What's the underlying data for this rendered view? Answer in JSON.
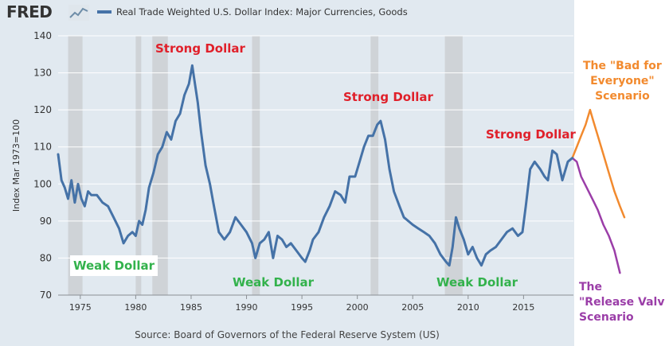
{
  "header": {
    "logo_text": "FRED",
    "legend_label": "Real Trade Weighted U.S. Dollar Index: Major Currencies, Goods",
    "legend_color": "#4572a7"
  },
  "footer": {
    "source": "Source: Board of Governors of the Federal Reserve System (US)"
  },
  "annotations": {
    "weak_1": "Weak Dollar",
    "weak_2": "Weak Dollar",
    "weak_3": "Weak Dollar",
    "strong_1": "Strong Dollar",
    "strong_2": "Strong Dollar",
    "strong_3": "Strong Dollar",
    "bad_line1": "The \"Bad for",
    "bad_line2": "Everyone\"",
    "bad_line3": "Scenario",
    "release_line1": "The",
    "release_line2": "\"Release Valve\"",
    "release_line3": "Scenario"
  },
  "chart_data": {
    "type": "line",
    "title": "Real Trade Weighted U.S. Dollar Index: Major Currencies, Goods",
    "ylabel": "Index Mar 1973=100",
    "xlabel": "",
    "xlim": [
      1973,
      2019.5
    ],
    "ylim": [
      70,
      140
    ],
    "x_ticks": [
      1975,
      1980,
      1985,
      1990,
      1995,
      2000,
      2005,
      2010,
      2015
    ],
    "y_ticks": [
      70,
      80,
      90,
      100,
      110,
      120,
      130,
      140
    ],
    "grid": "horizontal",
    "recessions": [
      [
        1973.9,
        1975.2
      ],
      [
        1980.0,
        1980.5
      ],
      [
        1981.5,
        1982.9
      ],
      [
        1990.5,
        1991.2
      ],
      [
        2001.2,
        2001.9
      ],
      [
        2007.9,
        2009.5
      ]
    ],
    "series": [
      {
        "name": "Real Trade Weighted U.S. Dollar Index: Major Currencies, Goods",
        "color": "#4572a7",
        "x": [
          1973.0,
          1973.3,
          1973.6,
          1973.9,
          1974.2,
          1974.5,
          1974.8,
          1975.1,
          1975.4,
          1975.7,
          1976.0,
          1976.5,
          1977.0,
          1977.5,
          1978.0,
          1978.5,
          1978.9,
          1979.3,
          1979.7,
          1980.0,
          1980.3,
          1980.6,
          1980.9,
          1981.2,
          1981.6,
          1982.0,
          1982.4,
          1982.8,
          1983.2,
          1983.6,
          1984.0,
          1984.4,
          1984.8,
          1985.1,
          1985.3,
          1985.6,
          1985.9,
          1986.3,
          1986.7,
          1987.0,
          1987.5,
          1988.0,
          1988.5,
          1989.0,
          1989.5,
          1990.0,
          1990.5,
          1990.8,
          1991.2,
          1991.6,
          1992.0,
          1992.4,
          1992.8,
          1993.2,
          1993.6,
          1994.0,
          1994.5,
          1995.0,
          1995.3,
          1995.7,
          1996.0,
          1996.5,
          1997.0,
          1997.5,
          1998.0,
          1998.5,
          1998.9,
          1999.3,
          1999.8,
          2000.2,
          2000.6,
          2001.0,
          2001.4,
          2001.8,
          2002.1,
          2002.5,
          2002.9,
          2003.3,
          2003.8,
          2004.2,
          2004.6,
          2005.0,
          2005.5,
          2006.0,
          2006.5,
          2007.0,
          2007.5,
          2008.0,
          2008.3,
          2008.6,
          2008.9,
          2009.2,
          2009.6,
          2010.0,
          2010.4,
          2010.8,
          2011.2,
          2011.6,
          2012.0,
          2012.5,
          2013.0,
          2013.5,
          2014.0,
          2014.5,
          2014.9,
          2015.2,
          2015.6,
          2016.0,
          2016.5,
          2016.9,
          2017.2,
          2017.6,
          2018.0,
          2018.5,
          2019.0,
          2019.4
        ],
        "values": [
          108,
          101,
          99,
          96,
          101,
          95,
          100,
          96,
          94,
          98,
          97,
          97,
          95,
          94,
          91,
          88,
          84,
          86,
          87,
          86,
          90,
          89,
          93,
          99,
          103,
          108,
          110,
          114,
          112,
          117,
          119,
          124,
          127,
          132,
          128,
          122,
          114,
          105,
          100,
          95,
          87,
          85,
          87,
          91,
          89,
          87,
          84,
          80,
          84,
          85,
          87,
          80,
          86,
          85,
          83,
          84,
          82,
          80,
          79,
          82,
          85,
          87,
          91,
          94,
          98,
          97,
          95,
          102,
          102,
          106,
          110,
          113,
          113,
          116,
          117,
          112,
          104,
          98,
          94,
          91,
          90,
          89,
          88,
          87,
          86,
          84,
          81,
          79,
          78,
          83,
          91,
          88,
          85,
          81,
          83,
          80,
          78,
          81,
          82,
          83,
          85,
          87,
          88,
          86,
          87,
          94,
          104,
          106,
          104,
          102,
          101,
          109,
          108,
          101,
          106,
          107
        ]
      }
    ],
    "scenarios": [
      {
        "name": "The \"Bad for Everyone\" Scenario",
        "color": "#f28a2e",
        "x": [
          2019.4,
          2019.8,
          2020.2,
          2020.6,
          2021.0,
          2021.3,
          2021.7,
          2022.2,
          2022.7,
          2023.2,
          2023.7,
          2024.1
        ],
        "values": [
          107,
          110,
          113,
          116,
          120,
          117,
          113,
          108,
          103,
          98,
          94,
          91
        ]
      },
      {
        "name": "The \"Release Valve\" Scenario",
        "color": "#9b3ea8",
        "x": [
          2019.4,
          2019.8,
          2020.2,
          2020.7,
          2021.2,
          2021.7,
          2022.2,
          2022.7,
          2023.2,
          2023.7
        ],
        "values": [
          107,
          106,
          102,
          99,
          96,
          93,
          89,
          86,
          82,
          76
        ]
      }
    ]
  }
}
